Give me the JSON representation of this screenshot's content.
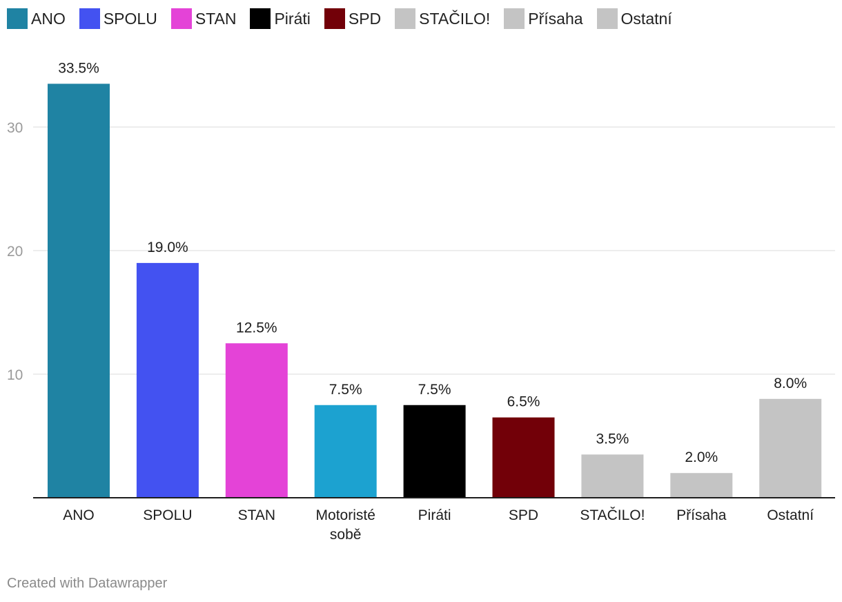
{
  "chart_data": {
    "type": "bar",
    "categories": [
      [
        "ANO"
      ],
      [
        "SPOLU"
      ],
      [
        "STAN"
      ],
      [
        "Motoristé",
        "sobě"
      ],
      [
        "Piráti"
      ],
      [
        "SPD"
      ],
      [
        "STAČILO!"
      ],
      [
        "Přísaha"
      ],
      [
        "Ostatní"
      ]
    ],
    "values": [
      33.5,
      19.0,
      12.5,
      7.5,
      7.5,
      6.5,
      3.5,
      2.0,
      8.0
    ],
    "value_labels": [
      "33.5%",
      "19.0%",
      "12.5%",
      "7.5%",
      "7.5%",
      "6.5%",
      "3.5%",
      "2.0%",
      "8.0%"
    ],
    "colors": [
      "#1f83a3",
      "#4352f1",
      "#e443d7",
      "#1ca2d0",
      "#000000",
      "#720008",
      "#c4c4c4",
      "#c4c4c4",
      "#c4c4c4"
    ],
    "yticks": [
      10,
      20,
      30
    ],
    "ylim": [
      0,
      35
    ],
    "grid": true,
    "legend_position": "top-left",
    "legend": [
      {
        "label": "ANO",
        "color": "#1f83a3"
      },
      {
        "label": "SPOLU",
        "color": "#4352f1"
      },
      {
        "label": "STAN",
        "color": "#e443d7"
      },
      {
        "label": "Piráti",
        "color": "#000000"
      },
      {
        "label": "SPD",
        "color": "#720008"
      },
      {
        "label": "STAČILO!",
        "color": "#c4c4c4"
      },
      {
        "label": "Přísaha",
        "color": "#c4c4c4"
      },
      {
        "label": "Ostatní",
        "color": "#c4c4c4"
      }
    ]
  },
  "footer": {
    "credit": "Created with Datawrapper"
  }
}
